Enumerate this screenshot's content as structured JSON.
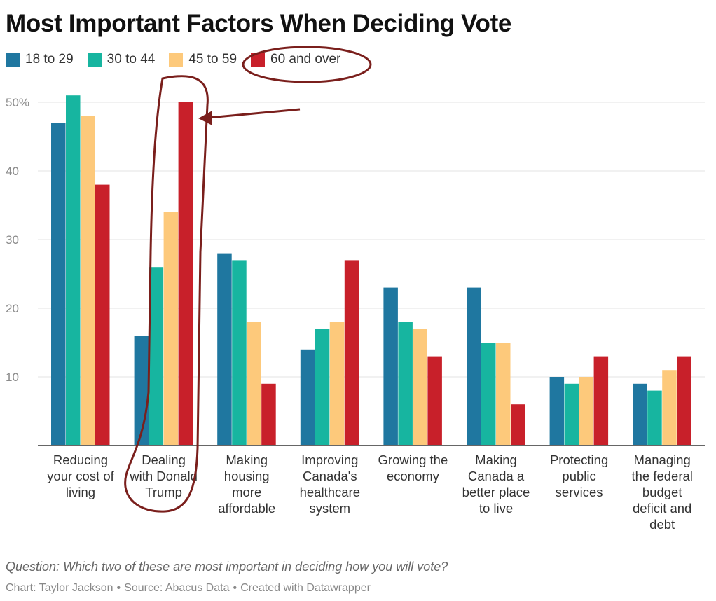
{
  "colors": {
    "series": [
      "#1f77a0",
      "#17b5a0",
      "#fdc97b",
      "#c8202a"
    ],
    "grid": "#e3e3e3",
    "axis": "#333333",
    "annotation": "#7a1f1c"
  },
  "chart_data": {
    "type": "bar",
    "title": "Most Important Factors When Deciding Vote",
    "categories": [
      "Reducing your cost of living",
      "Dealing with Donald Trump",
      "Making housing more affordable",
      "Improving Canada's healthcare system",
      "Growing the economy",
      "Making Canada a better place to live",
      "Protecting public services",
      "Managing the federal budget deficit and debt"
    ],
    "category_lines": [
      [
        "Reducing",
        "your cost of",
        "living"
      ],
      [
        "Dealing",
        "with Donald",
        "Trump"
      ],
      [
        "Making",
        "housing",
        "more",
        "affordable"
      ],
      [
        "Improving",
        "Canada's",
        "healthcare",
        "system"
      ],
      [
        "Growing the",
        "economy"
      ],
      [
        "Making",
        "Canada a",
        "better place",
        "to live"
      ],
      [
        "Protecting",
        "public",
        "services"
      ],
      [
        "Managing",
        "the federal",
        "budget",
        "deficit and",
        "debt"
      ]
    ],
    "series": [
      {
        "name": "18 to 29",
        "values": [
          47,
          16,
          28,
          14,
          23,
          23,
          10,
          9
        ]
      },
      {
        "name": "30 to 44",
        "values": [
          51,
          26,
          27,
          17,
          18,
          15,
          9,
          8
        ]
      },
      {
        "name": "45 to 59",
        "values": [
          48,
          34,
          18,
          18,
          17,
          15,
          10,
          11
        ]
      },
      {
        "name": "60 and over",
        "values": [
          38,
          50,
          9,
          27,
          13,
          6,
          13,
          13
        ]
      }
    ],
    "ylim": [
      0,
      50
    ],
    "yticks": [
      10,
      20,
      30,
      40,
      50
    ],
    "ytick_labels": [
      "10",
      "20",
      "30",
      "40",
      "50%"
    ],
    "grid": true,
    "legend": "top-left"
  },
  "footnote": "Question: Which two of these are most important in deciding how you will vote?",
  "credits": [
    "Chart: Taylor Jackson",
    "Source: Abacus Data",
    "Created with Datawrapper"
  ]
}
